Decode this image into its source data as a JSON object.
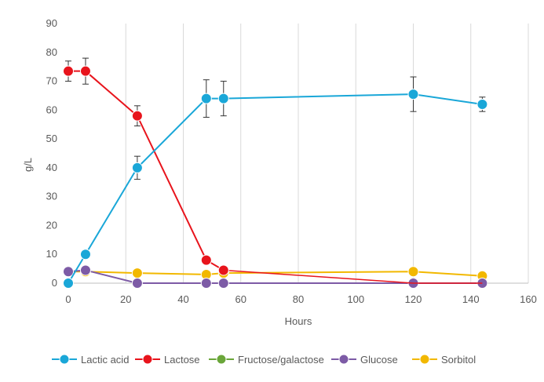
{
  "chart_data": {
    "type": "line",
    "title": "",
    "xlabel": "Hours",
    "ylabel": "g/L",
    "xlim": [
      0,
      160
    ],
    "ylim": [
      0,
      90
    ],
    "x_ticks": [
      "0",
      "20",
      "40",
      "60",
      "80",
      "100",
      "120",
      "140",
      "160"
    ],
    "y_ticks": [
      "0",
      "10",
      "20",
      "30",
      "40",
      "50",
      "60",
      "70",
      "80",
      "90"
    ],
    "grid": "vertical gridlines",
    "legend_position": "bottom",
    "series": [
      {
        "name": "Lactic acid",
        "color": "#1aa7d8",
        "x": [
          0,
          6,
          24,
          48,
          54,
          120,
          144
        ],
        "y": [
          0,
          10,
          40,
          64,
          64,
          65.5,
          62
        ],
        "error": [
          0,
          0,
          4,
          6.5,
          6,
          6,
          2.5
        ]
      },
      {
        "name": "Lactose",
        "color": "#e8141c",
        "x": [
          0,
          6,
          24,
          48,
          54
        ],
        "y": [
          73.5,
          73.5,
          58,
          8,
          4.5
        ],
        "error": [
          3.5,
          4.5,
          3.5,
          0,
          0
        ],
        "trail_x": [
          54,
          120,
          144
        ],
        "trail_y": [
          4.5,
          0,
          0
        ]
      },
      {
        "name": "Fructose/galactose",
        "color": "#6aa63a",
        "x": [],
        "y": []
      },
      {
        "name": "Glucose",
        "color": "#7d5ba6",
        "x": [
          0,
          6,
          24,
          48,
          54,
          120,
          144
        ],
        "y": [
          4,
          4.5,
          0,
          0,
          0,
          0,
          0
        ]
      },
      {
        "name": "Sorbitol",
        "color": "#f2b800",
        "x": [
          0,
          6,
          24,
          48,
          54,
          120,
          144
        ],
        "y": [
          4,
          4,
          3.5,
          3,
          3.5,
          4,
          2.5
        ]
      }
    ]
  }
}
